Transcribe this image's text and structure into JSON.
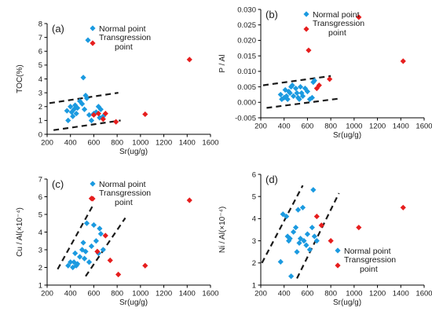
{
  "colors": {
    "normal": "#1b9ae0",
    "transgression": "#e61e1e",
    "axis": "#000000",
    "trend": "#1a1a1a"
  },
  "chart_data": [
    {
      "type": "scatter",
      "panel_label": "(a)",
      "xlabel": "Sr(ug/g)",
      "ylabel": "TOC(%)",
      "xlim": [
        200,
        1600
      ],
      "ylim": [
        0,
        8
      ],
      "xticks": [
        200,
        400,
        600,
        800,
        1000,
        1200,
        1400,
        1600
      ],
      "yticks": [
        0,
        1,
        2,
        3,
        4,
        5,
        6,
        7,
        8
      ],
      "ytick_labels": [
        "0",
        "1",
        "2",
        "3",
        "4",
        "5",
        "6",
        "7",
        "8"
      ],
      "legend": {
        "position": "top-center",
        "entries": [
          "Normal point",
          "Transgression point"
        ],
        "lines": [
          [
            "Normal point"
          ],
          [
            "Transgression",
            "point"
          ]
        ]
      },
      "series": [
        {
          "name": "Normal point",
          "color": "#1b9ae0",
          "marker": "diamond",
          "points": [
            [
              370,
              1.7
            ],
            [
              380,
              1.0
            ],
            [
              400,
              2.0
            ],
            [
              410,
              1.6
            ],
            [
              420,
              1.3
            ],
            [
              430,
              1.8
            ],
            [
              440,
              2.1
            ],
            [
              450,
              1.5
            ],
            [
              460,
              1.9
            ],
            [
              480,
              2.4
            ],
            [
              500,
              2.2
            ],
            [
              510,
              4.1
            ],
            [
              520,
              1.8
            ],
            [
              530,
              2.8
            ],
            [
              540,
              2.6
            ],
            [
              550,
              6.8
            ],
            [
              560,
              1.4
            ],
            [
              580,
              1.0
            ],
            [
              600,
              1.5
            ],
            [
              620,
              1.6
            ],
            [
              640,
              2.0
            ],
            [
              650,
              1.2
            ],
            [
              660,
              1.8
            ],
            [
              680,
              1.3
            ]
          ]
        },
        {
          "name": "Transgression point",
          "color": "#e61e1e",
          "marker": "diamond",
          "points": [
            [
              600,
              1.4
            ],
            [
              640,
              1.5
            ],
            [
              680,
              1.1
            ],
            [
              700,
              1.5
            ],
            [
              790,
              0.9
            ],
            [
              1040,
              1.45
            ],
            [
              1420,
              5.4
            ]
          ]
        }
      ],
      "trend_lines": [
        {
          "from": [
            220,
            2.25
          ],
          "to": [
            810,
            3.0
          ]
        },
        {
          "from": [
            255,
            0.3
          ],
          "to": [
            830,
            1.0
          ]
        }
      ]
    },
    {
      "type": "scatter",
      "panel_label": "(b)",
      "xlabel": "Sr(ug/g)",
      "ylabel": "P / Al",
      "xlim": [
        200,
        1600
      ],
      "ylim": [
        -0.005,
        0.03
      ],
      "xticks": [
        200,
        400,
        600,
        800,
        1000,
        1200,
        1400,
        1600
      ],
      "yticks": [
        -0.005,
        0,
        0.005,
        0.01,
        0.015,
        0.02,
        0.025,
        0.03
      ],
      "ytick_labels": [
        "-0.005",
        "0.000",
        "0.005",
        "0.010",
        "0.015",
        "0.020",
        "0.025",
        "0.030"
      ],
      "legend": {
        "position": "top-center",
        "entries": [
          "Normal point",
          "Transgression point"
        ],
        "lines": [
          [
            "Normal point"
          ],
          [
            "Transgression",
            "point"
          ]
        ]
      },
      "series": [
        {
          "name": "Normal point",
          "color": "#1b9ae0",
          "marker": "diamond",
          "points": [
            [
              370,
              0.0025
            ],
            [
              380,
              0.001
            ],
            [
              400,
              0.0015
            ],
            [
              410,
              0.004
            ],
            [
              420,
              0.002
            ],
            [
              430,
              0.001
            ],
            [
              440,
              0.0035
            ],
            [
              450,
              0.003
            ],
            [
              460,
              0.005
            ],
            [
              470,
              0.0055
            ],
            [
              480,
              0.002
            ],
            [
              500,
              0.0045
            ],
            [
              510,
              0.003
            ],
            [
              520,
              0.0015
            ],
            [
              530,
              0.001
            ],
            [
              540,
              0.005
            ],
            [
              550,
              0.003
            ],
            [
              560,
              0.002
            ],
            [
              580,
              0.0045
            ],
            [
              600,
              0.0035
            ],
            [
              620,
              0.001
            ],
            [
              640,
              0.0015
            ],
            [
              650,
              0.0065
            ],
            [
              660,
              0.007
            ]
          ]
        },
        {
          "name": "Transgression point",
          "color": "#e61e1e",
          "marker": "diamond",
          "points": [
            [
              610,
              0.0168
            ],
            [
              680,
              0.0045
            ],
            [
              700,
              0.0055
            ],
            [
              790,
              0.0075
            ],
            [
              1040,
              0.0275
            ],
            [
              1420,
              0.0133
            ]
          ]
        }
      ],
      "trend_lines": [
        {
          "from": [
            220,
            0.0055
          ],
          "to": [
            800,
            0.0085
          ]
        },
        {
          "from": [
            250,
            -0.0018
          ],
          "to": [
            870,
            0.0012
          ]
        }
      ]
    },
    {
      "type": "scatter",
      "panel_label": "(c)",
      "xlabel": "Sr(ug/g)",
      "ylabel": "Cu / Al(×10⁻⁴)",
      "xlim": [
        200,
        1600
      ],
      "ylim": [
        1,
        7
      ],
      "xticks": [
        200,
        400,
        600,
        800,
        1000,
        1200,
        1400,
        1600
      ],
      "yticks": [
        1,
        2,
        3,
        4,
        5,
        6,
        7
      ],
      "ytick_labels": [
        "1",
        "2",
        "3",
        "4",
        "5",
        "6",
        "7"
      ],
      "legend": {
        "position": "top-center",
        "entries": [
          "Normal point",
          "Transgression point"
        ],
        "lines": [
          [
            "Normal point"
          ],
          [
            "Transgression",
            "point"
          ]
        ]
      },
      "series": [
        {
          "name": "Normal point",
          "color": "#1b9ae0",
          "marker": "diamond",
          "points": [
            [
              380,
              2.1
            ],
            [
              400,
              2.3
            ],
            [
              420,
              2.0
            ],
            [
              430,
              2.3
            ],
            [
              440,
              2.8
            ],
            [
              450,
              2.1
            ],
            [
              460,
              2.2
            ],
            [
              480,
              2.6
            ],
            [
              500,
              3.0
            ],
            [
              510,
              3.4
            ],
            [
              520,
              2.5
            ],
            [
              530,
              2.9
            ],
            [
              540,
              4.5
            ],
            [
              560,
              2.3
            ],
            [
              580,
              3.2
            ],
            [
              600,
              4.4
            ],
            [
              620,
              3.5
            ],
            [
              640,
              2.8
            ],
            [
              650,
              4.2
            ],
            [
              660,
              3.9
            ],
            [
              680,
              3.0
            ]
          ]
        },
        {
          "name": "Transgression point",
          "color": "#e61e1e",
          "marker": "diamond",
          "points": [
            [
              580,
              5.9
            ],
            [
              630,
              2.9
            ],
            [
              700,
              3.8
            ],
            [
              740,
              2.4
            ],
            [
              810,
              1.6
            ],
            [
              1040,
              2.1
            ],
            [
              1420,
              5.8
            ]
          ]
        }
      ],
      "trend_lines": [
        {
          "from": [
            290,
            1.9
          ],
          "to": [
            600,
            5.6
          ]
        },
        {
          "from": [
            530,
            1.5
          ],
          "to": [
            870,
            4.8
          ]
        }
      ]
    },
    {
      "type": "scatter",
      "panel_label": "(d)",
      "xlabel": "Sr(ug/g)",
      "ylabel": "Ni / Al(×10⁻⁴)",
      "xlim": [
        200,
        1600
      ],
      "ylim": [
        1,
        6
      ],
      "xticks": [
        200,
        400,
        600,
        800,
        1000,
        1200,
        1400,
        1600
      ],
      "yticks": [
        1,
        2,
        3,
        4,
        5,
        6
      ],
      "ytick_labels": [
        "1",
        "2",
        "3",
        "4",
        "5",
        "6"
      ],
      "legend": {
        "position": "bottom-right",
        "entries": [
          "Normal point",
          "Transgression point"
        ],
        "lines": [
          [
            "Normal point"
          ],
          [
            "Transgression",
            "point"
          ]
        ]
      },
      "series": [
        {
          "name": "Normal point",
          "color": "#1b9ae0",
          "marker": "diamond",
          "points": [
            [
              370,
              2.05
            ],
            [
              390,
              4.2
            ],
            [
              420,
              4.1
            ],
            [
              430,
              3.2
            ],
            [
              440,
              3.0
            ],
            [
              450,
              3.1
            ],
            [
              460,
              1.4
            ],
            [
              480,
              3.4
            ],
            [
              500,
              3.6
            ],
            [
              510,
              2.5
            ],
            [
              520,
              4.4
            ],
            [
              530,
              2.9
            ],
            [
              540,
              3.1
            ],
            [
              560,
              4.5
            ],
            [
              570,
              3.0
            ],
            [
              590,
              2.8
            ],
            [
              600,
              3.3
            ],
            [
              620,
              2.6
            ],
            [
              640,
              3.6
            ],
            [
              650,
              5.3
            ],
            [
              660,
              3.2
            ],
            [
              680,
              3.0
            ]
          ]
        },
        {
          "name": "Transgression point",
          "color": "#e61e1e",
          "marker": "diamond",
          "points": [
            [
              680,
              4.1
            ],
            [
              720,
              3.7
            ],
            [
              800,
              3.0
            ],
            [
              1040,
              3.6
            ],
            [
              1420,
              4.5
            ]
          ]
        }
      ],
      "trend_lines": [
        {
          "from": [
            210,
            2.0
          ],
          "to": [
            560,
            5.5
          ]
        },
        {
          "from": [
            510,
            1.3
          ],
          "to": [
            870,
            5.15
          ]
        }
      ]
    }
  ]
}
